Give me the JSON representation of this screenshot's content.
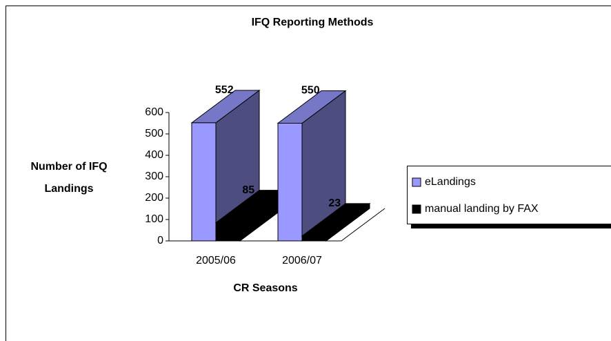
{
  "chart_data": {
    "type": "bar3d",
    "title": "IFQ Reporting Methods",
    "x_label": "CR Seasons",
    "y_label": "Number of IFQ Landings",
    "categories": [
      "2005/06",
      "2006/07"
    ],
    "series": [
      {
        "name": "eLandings",
        "color": "#9999ff",
        "values": [
          552,
          550
        ]
      },
      {
        "name": "manual landing by FAX",
        "color": "#000000",
        "values": [
          85,
          23
        ]
      }
    ],
    "ylim": [
      0,
      600
    ],
    "yticks": [
      0,
      100,
      200,
      300,
      400,
      500,
      600
    ],
    "legend": "right"
  }
}
